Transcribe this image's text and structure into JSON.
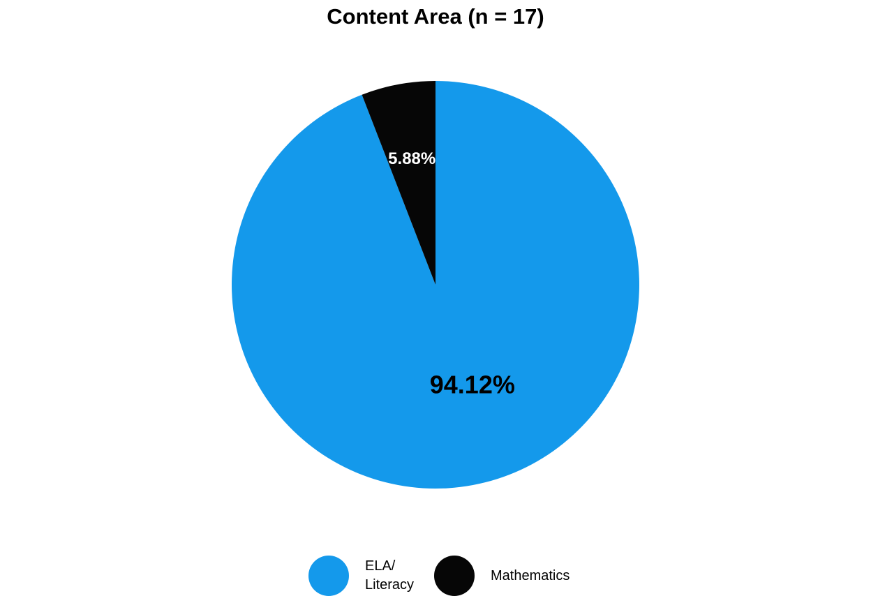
{
  "chart_data": {
    "type": "pie",
    "title": "Content Area (n = 17)",
    "categories": [
      "ELA/\nLiteracy",
      "Mathematics"
    ],
    "values": [
      94.12,
      5.88
    ],
    "labels": [
      "94.12%",
      "5.88%"
    ],
    "colors": [
      "#1499EB",
      "#060606"
    ],
    "label_colors": [
      "#000000",
      "#ffffff"
    ],
    "legend_position": "bottom"
  }
}
